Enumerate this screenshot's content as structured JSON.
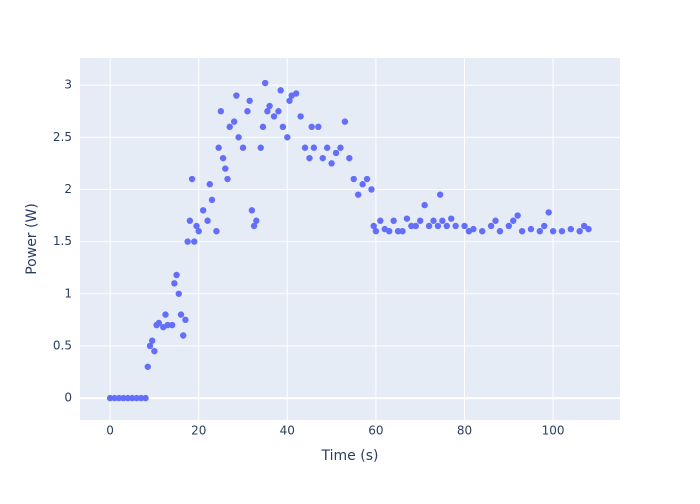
{
  "chart_data": {
    "type": "scatter",
    "x_label": "Time (s)",
    "y_label": "Power (W)",
    "color": "#636efa",
    "x": [
      0,
      1,
      2,
      3,
      4,
      5,
      6,
      7,
      8,
      8.5,
      9,
      9.5,
      10,
      10.5,
      11,
      12,
      12.5,
      13,
      14,
      14.5,
      15,
      15.5,
      16,
      16.5,
      17,
      17.5,
      18,
      18.5,
      19,
      19.5,
      20,
      21,
      22,
      22.5,
      23,
      24,
      24.5,
      25,
      25.5,
      26,
      26.5,
      27,
      28,
      28.5,
      29,
      30,
      31,
      31.5,
      32,
      32.5,
      33,
      34,
      34.5,
      35,
      35.5,
      36,
      37,
      38,
      38.5,
      39,
      40,
      40.5,
      41,
      42,
      43,
      44,
      45,
      45.5,
      46,
      47,
      48,
      49,
      50,
      51,
      52,
      53,
      54,
      55,
      56,
      57,
      58,
      59,
      59.5,
      60,
      61,
      62,
      63,
      64,
      65,
      66,
      67,
      68,
      69,
      70,
      71,
      72,
      73,
      74,
      74.5,
      75,
      76,
      77,
      78,
      80,
      81,
      82,
      84,
      86,
      87,
      88,
      90,
      91,
      92,
      93,
      95,
      97,
      98,
      99,
      100,
      102,
      104,
      106,
      107,
      108
    ],
    "values": [
      0,
      0,
      0,
      0,
      0,
      0,
      0,
      0,
      0,
      0.3,
      0.5,
      0.55,
      0.45,
      0.7,
      0.72,
      0.68,
      0.8,
      0.7,
      0.7,
      1.1,
      1.18,
      1.0,
      0.8,
      0.6,
      0.75,
      1.5,
      1.7,
      2.1,
      1.5,
      1.65,
      1.6,
      1.8,
      1.7,
      2.05,
      1.9,
      1.6,
      2.4,
      2.75,
      2.3,
      2.2,
      2.1,
      2.6,
      2.65,
      2.9,
      2.5,
      2.4,
      2.75,
      2.85,
      1.8,
      1.65,
      1.7,
      2.4,
      2.6,
      3.02,
      2.75,
      2.8,
      2.7,
      2.75,
      2.95,
      2.6,
      2.5,
      2.85,
      2.9,
      2.92,
      2.7,
      2.4,
      2.3,
      2.6,
      2.4,
      2.6,
      2.3,
      2.4,
      2.25,
      2.35,
      2.4,
      2.65,
      2.3,
      2.1,
      1.95,
      2.05,
      2.1,
      2.0,
      1.65,
      1.6,
      1.7,
      1.62,
      1.6,
      1.7,
      1.6,
      1.6,
      1.72,
      1.65,
      1.65,
      1.7,
      1.85,
      1.65,
      1.7,
      1.65,
      1.95,
      1.7,
      1.65,
      1.72,
      1.65,
      1.65,
      1.6,
      1.62,
      1.6,
      1.65,
      1.7,
      1.6,
      1.65,
      1.7,
      1.75,
      1.6,
      1.62,
      1.6,
      1.65,
      1.78,
      1.6,
      1.6,
      1.62,
      1.6,
      1.65,
      1.62
    ],
    "xlim": [
      -6.8,
      115.1
    ],
    "ylim": [
      -0.21,
      3.26
    ],
    "xticks": [
      0,
      20,
      40,
      60,
      80,
      100
    ],
    "yticks": [
      0,
      0.5,
      1,
      1.5,
      2,
      2.5,
      3
    ],
    "grid": true
  }
}
